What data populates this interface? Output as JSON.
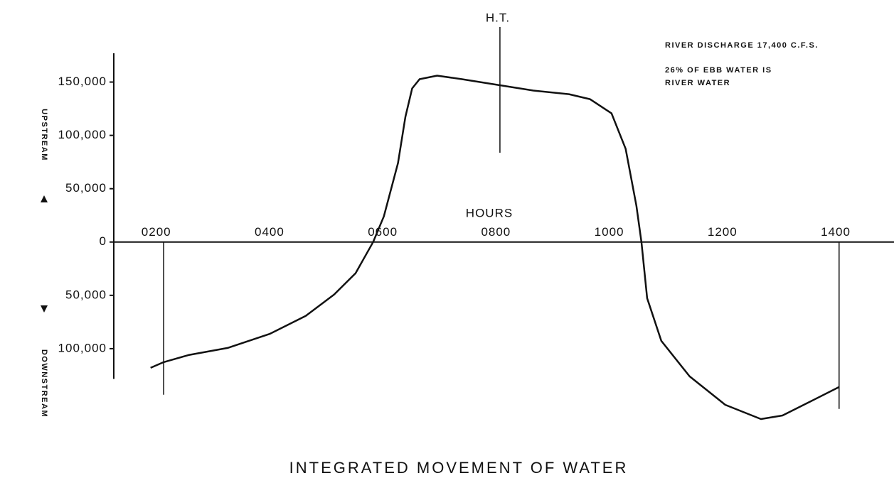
{
  "chart_data": {
    "type": "line",
    "title": "INTEGRATED MOVEMENT OF WATER",
    "xlabel": "HOURS",
    "ylabel_up": "UPSTREAM",
    "ylabel_down": "DOWNSTREAM",
    "annotations": {
      "high_tide": {
        "label": "H.T.",
        "x": 8.07
      },
      "discharge": "RIVER DISCHARGE 17,400 C.F.S.",
      "ebb": [
        "26% OF EBB WATER IS",
        "RIVER WATER"
      ]
    },
    "markers": [
      2.13,
      14.06
    ],
    "x": [
      1.9,
      2.13,
      2.57,
      3.26,
      4.01,
      4.64,
      5.14,
      5.52,
      5.83,
      6.02,
      6.27,
      6.4,
      6.52,
      6.65,
      6.96,
      7.4,
      8.03,
      8.66,
      9.29,
      9.66,
      10.04,
      10.29,
      10.48,
      10.57,
      10.67,
      10.92,
      11.42,
      12.05,
      12.68,
      13.06,
      13.56,
      14.06
    ],
    "series": [
      {
        "name": "Integrated movement",
        "color": "#111111",
        "values": [
          -118000,
          -112667,
          -106000,
          -99333,
          -86000,
          -69333,
          -49333,
          -29333,
          0,
          24000,
          74000,
          117333,
          144000,
          152667,
          156000,
          152667,
          147333,
          142000,
          138667,
          134000,
          120667,
          87333,
          34000,
          0,
          -52667,
          -92667,
          -126000,
          -152667,
          -166000,
          -162667,
          -149333,
          -136000
        ]
      }
    ],
    "xlim": [
      1.25,
      15.03
    ],
    "ylim": [
      -175000,
      177000
    ],
    "xticks": [
      {
        "value": 2,
        "label": "0200"
      },
      {
        "value": 4,
        "label": "0400"
      },
      {
        "value": 6,
        "label": "0600"
      },
      {
        "value": 8,
        "label": "0800"
      },
      {
        "value": 10,
        "label": "1000"
      },
      {
        "value": 12,
        "label": "1200"
      },
      {
        "value": 14,
        "label": "1400"
      }
    ],
    "yticks": [
      {
        "value": 150000,
        "label": "150,000"
      },
      {
        "value": 100000,
        "label": "100,000"
      },
      {
        "value": 50000,
        "label": "50,000"
      },
      0,
      {
        "value": -50000,
        "label": "50,000"
      },
      {
        "value": -100000,
        "label": "100,000"
      }
    ]
  }
}
